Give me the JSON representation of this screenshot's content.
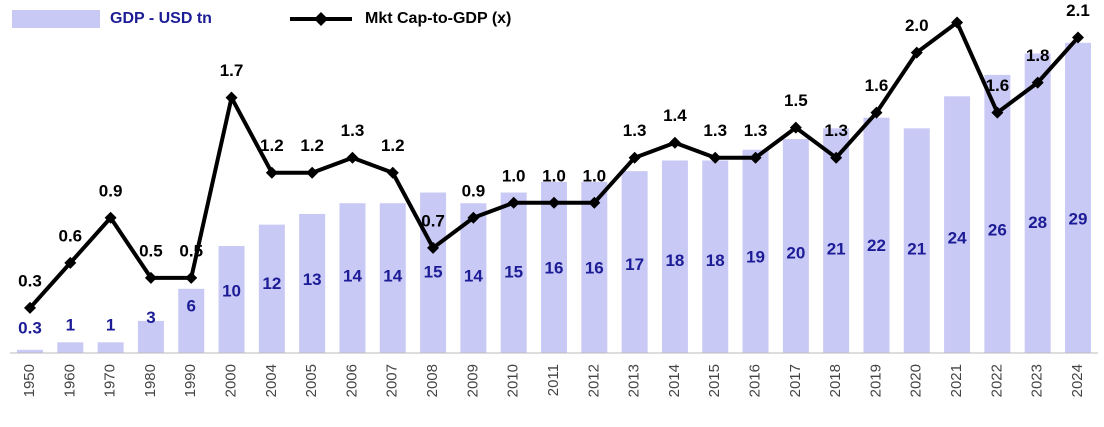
{
  "chart_data": {
    "type": "bar-line",
    "categories": [
      "1950",
      "1960",
      "1970",
      "1980",
      "1990",
      "2000",
      "2004",
      "2005",
      "2006",
      "2007",
      "2008",
      "2009",
      "2010",
      "2011",
      "2012",
      "2013",
      "2014",
      "2015",
      "2016",
      "2017",
      "2018",
      "2019",
      "2020",
      "2021",
      "2022",
      "2023",
      "2024"
    ],
    "ylim": [
      0,
      33
    ],
    "y2lim": [
      0,
      2.35
    ],
    "series": [
      {
        "name": "GDP - USD tn",
        "type": "bar",
        "color": "#c9c9f5",
        "label_color": "#1c1c96",
        "values": [
          0.3,
          1,
          1,
          3,
          6,
          10,
          12,
          13,
          14,
          14,
          15,
          14,
          15,
          16,
          16,
          17,
          18,
          18,
          19,
          20,
          21,
          22,
          21,
          24,
          26,
          28,
          29
        ]
      },
      {
        "name": "Mkt Cap-to-GDP (x)",
        "type": "line",
        "axis": "y2",
        "color": "#000000",
        "values": [
          0.3,
          0.6,
          0.9,
          0.5,
          0.5,
          1.7,
          1.2,
          1.2,
          1.3,
          1.2,
          0.7,
          0.9,
          1.0,
          1.0,
          1.0,
          1.3,
          1.4,
          1.3,
          1.3,
          1.5,
          1.3,
          1.6,
          2.0,
          2.2,
          1.6,
          1.8,
          2.1
        ],
        "value_labels": [
          "0.3",
          "0.6",
          "0.9",
          "0.5",
          "0.5",
          "1.7",
          "1.2",
          "1.2",
          "1.3",
          "1.2",
          "0.7",
          "0.9",
          "1.0",
          "1.0",
          "1.0",
          "1.3",
          "1.4",
          "1.3",
          "1.3",
          "1.5",
          "1.3",
          "1.6",
          "2.0",
          null,
          "1.6",
          "1.8",
          "2.1"
        ]
      }
    ]
  }
}
